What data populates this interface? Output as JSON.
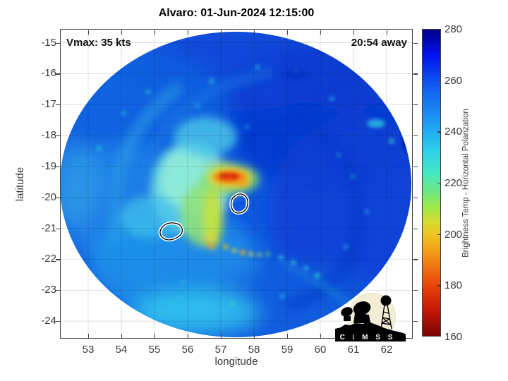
{
  "title": "Alvaro: 01-Jun-2024 12:15:00",
  "annotations": {
    "vmax": "Vmax: 35 kts",
    "time_away": "20:54 away"
  },
  "axes": {
    "xlabel": "longitude",
    "ylabel": "latitude",
    "x_ticks": [
      "53",
      "54",
      "55",
      "56",
      "57",
      "58",
      "59",
      "60",
      "61",
      "62"
    ],
    "y_ticks": [
      "-15",
      "-16",
      "-17",
      "-18",
      "-19",
      "-20",
      "-21",
      "-22",
      "-23",
      "-24"
    ]
  },
  "colorbar": {
    "label": "Brightness Temp - Horizontal Polarization",
    "ticks": [
      "280",
      "260",
      "240",
      "220",
      "200",
      "180",
      "160"
    ],
    "min": 160,
    "max": 280,
    "stops": [
      {
        "c": "#000088",
        "p": 0
      },
      {
        "c": "#0011ee",
        "p": 8
      },
      {
        "c": "#0f52f0",
        "p": 17
      },
      {
        "c": "#1a7df2",
        "p": 25
      },
      {
        "c": "#21aaf2",
        "p": 33
      },
      {
        "c": "#2fd2ec",
        "p": 40
      },
      {
        "c": "#45e8c0",
        "p": 47
      },
      {
        "c": "#6fe880",
        "p": 53
      },
      {
        "c": "#a0e84a",
        "p": 58
      },
      {
        "c": "#d6dc2e",
        "p": 63
      },
      {
        "c": "#f0c322",
        "p": 67
      },
      {
        "c": "#f29a16",
        "p": 73
      },
      {
        "c": "#f0660e",
        "p": 79
      },
      {
        "c": "#e43a0a",
        "p": 85
      },
      {
        "c": "#c21607",
        "p": 92
      },
      {
        "c": "#7d0402",
        "p": 100
      }
    ]
  },
  "logo": {
    "text": "C I M S S"
  },
  "chart_data": {
    "type": "heatmap",
    "title": "Alvaro: 01-Jun-2024 12:15:00",
    "xlabel": "longitude",
    "ylabel": "latitude",
    "xlim": [
      52.2,
      62.8
    ],
    "ylim": [
      -24.6,
      -14.6
    ],
    "x_ticks": [
      53,
      54,
      55,
      56,
      57,
      58,
      59,
      60,
      61,
      62
    ],
    "y_ticks": [
      -15,
      -16,
      -17,
      -18,
      -19,
      -20,
      -21,
      -22,
      -23,
      -24
    ],
    "grid": true,
    "colorbar": {
      "label": "Brightness Temp - Horizontal Polarization",
      "min": 160,
      "max": 280,
      "ticks": [
        160,
        180,
        200,
        220,
        240,
        260,
        280
      ],
      "colormap": "reversed-jet (280=dark blue, 160=dark red)"
    },
    "swath": {
      "shape": "circular microwave swath",
      "center_lon": 57.5,
      "center_lat": -19.6,
      "radius_deg_lon": 5.3,
      "radius_deg_lat": 4.9,
      "background_bt_K": 255
    },
    "annotations": [
      {
        "text": "Vmax: 35 kts",
        "position": "top-left"
      },
      {
        "text": "20:54 away",
        "position": "top-right"
      }
    ],
    "features": [
      {
        "name": "deep-convection-hot-spot",
        "lon": 57.1,
        "lat": -19.4,
        "bt_K": 180,
        "appearance": "red/orange blob"
      },
      {
        "name": "central-cold-cloud-mass",
        "lon": 56.8,
        "lat": -19.9,
        "bt_K": 230,
        "appearance": "pale cyan/green region"
      },
      {
        "name": "yellow-green-band",
        "lon": 57.0,
        "lat": -20.4,
        "bt_K": 205,
        "appearance": "curved band south of hot spot"
      },
      {
        "name": "dotted-warm-band",
        "lon": 57.6,
        "lat": -21.4,
        "bt_K": 210,
        "appearance": "yellow dotted arc"
      },
      {
        "name": "coastline-contour-1",
        "lon": 57.55,
        "lat": -20.1,
        "appearance": "white outlined island"
      },
      {
        "name": "coastline-contour-2",
        "lon": 55.5,
        "lat": -21.1,
        "appearance": "white outlined island"
      },
      {
        "name": "warm-sector",
        "lon": 60.0,
        "lat": -19.0,
        "bt_K": 262,
        "appearance": "darker blue eastern half"
      },
      {
        "name": "cool-cyan-sector",
        "lon": 55.0,
        "lat": -22.0,
        "bt_K": 243,
        "appearance": "lighter cyan-blue southwest"
      }
    ]
  }
}
